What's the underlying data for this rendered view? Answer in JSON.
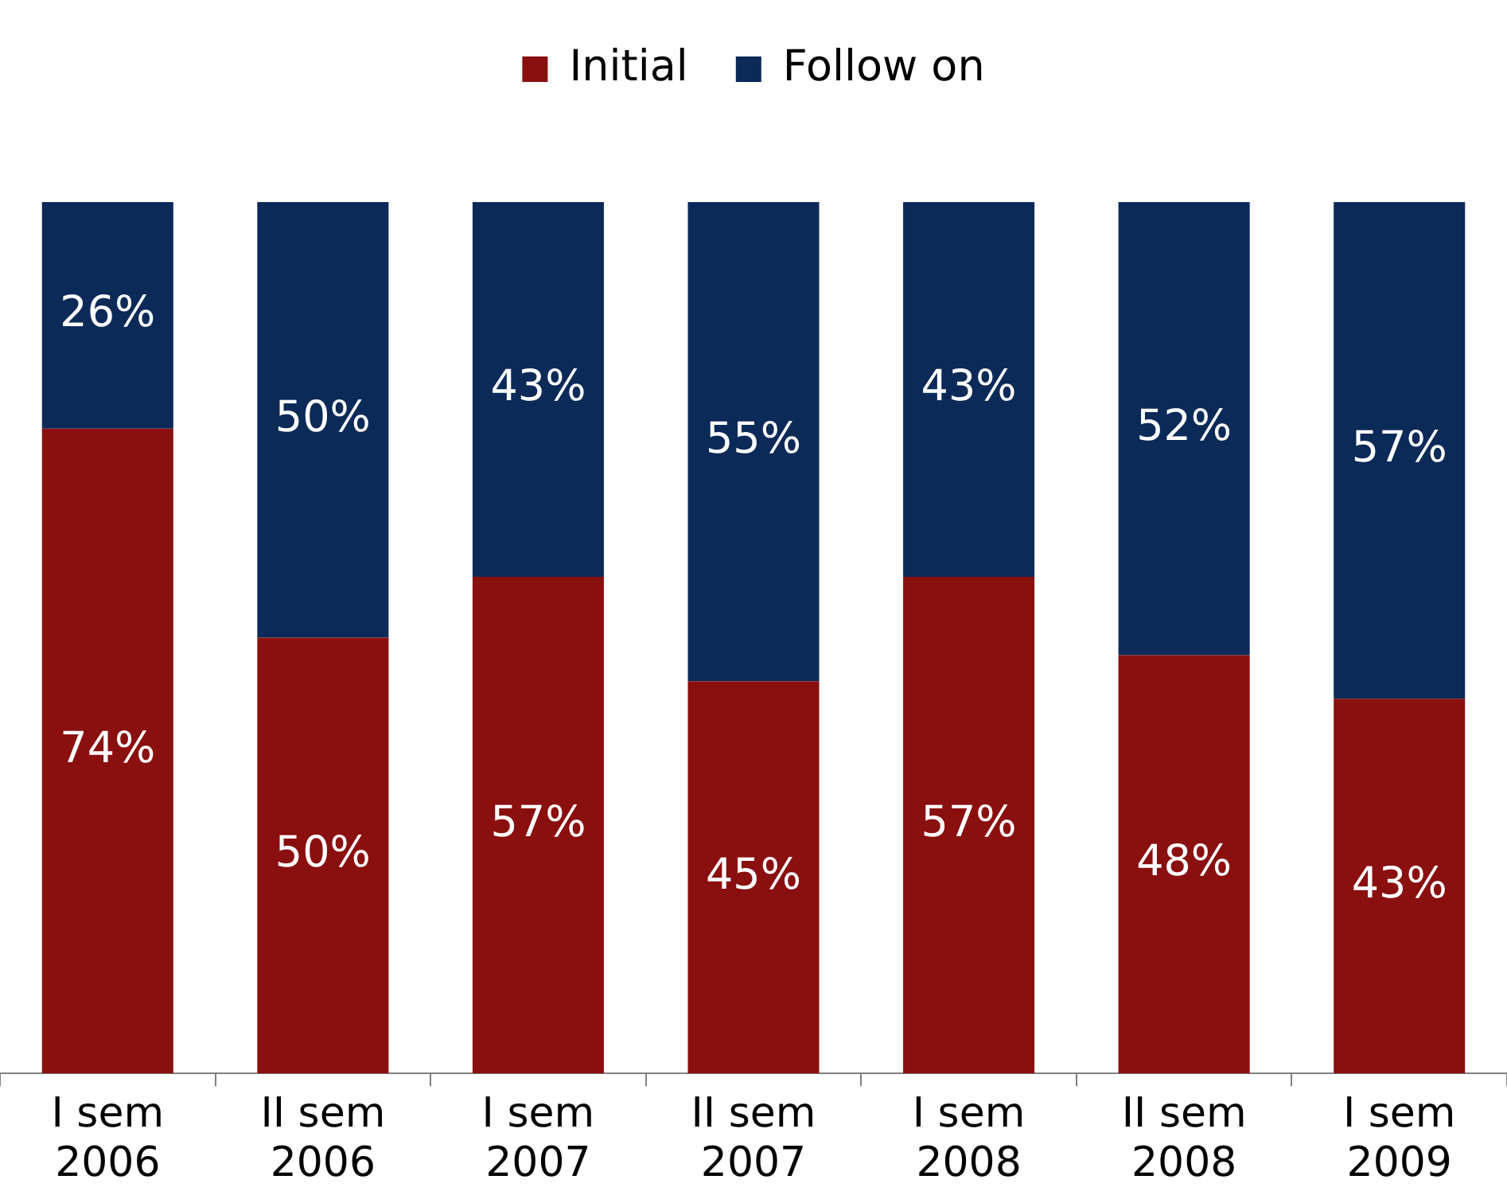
{
  "chart_data": {
    "type": "bar",
    "stacked": true,
    "categories": [
      "I sem 2006",
      "II sem 2006",
      "I sem 2007",
      "II sem 2007",
      "I sem 2008",
      "II sem 2008",
      "I sem 2009"
    ],
    "series": [
      {
        "name": "Initial",
        "color": "#8a0f0f",
        "values": [
          74,
          50,
          57,
          45,
          57,
          48,
          43
        ],
        "value_labels": [
          "74%",
          "50%",
          "57%",
          "45%",
          "57%",
          "48%",
          "43%"
        ]
      },
      {
        "name": "Follow on",
        "color": "#0b2a58",
        "values": [
          26,
          50,
          43,
          55,
          43,
          52,
          57
        ],
        "value_labels": [
          "26%",
          "50%",
          "43%",
          "55%",
          "43%",
          "52%",
          "57%"
        ]
      }
    ],
    "tick_labels": "x",
    "legend": "top",
    "grid": false
  }
}
